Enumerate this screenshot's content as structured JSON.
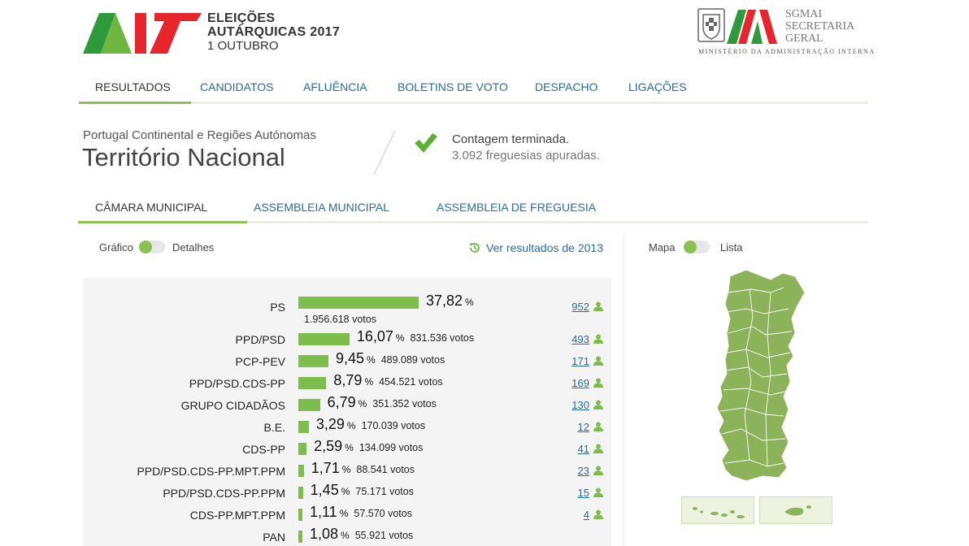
{
  "header": {
    "logo_line1": "ELEIÇÕES",
    "logo_line2": "AUTÁRQUICAS 2017",
    "logo_line3": "1 OUTUBRO",
    "sgmai_line1": "SGMAI",
    "sgmai_line2": "SECRETARIA",
    "sgmai_line3": "GERAL",
    "ministry": "MINISTÉRIO DA ADMINISTRAÇÃO INTERNA"
  },
  "main_nav": [
    {
      "label": "RESULTADOS",
      "active": true
    },
    {
      "label": "CANDIDATOS",
      "active": false
    },
    {
      "label": "AFLUÊNCIA",
      "active": false
    },
    {
      "label": "BOLETINS DE VOTO",
      "active": false
    },
    {
      "label": "DESPACHO",
      "active": false
    },
    {
      "label": "LIGAÇÕES",
      "active": false
    }
  ],
  "region": {
    "subtitle": "Portugal Continental e Regiões Autónomas",
    "title": "Território Nacional"
  },
  "status": {
    "main": "Contagem terminada.",
    "sub": "3.092 freguesias apuradas."
  },
  "sub_tabs": [
    {
      "label": "CÂMARA MUNICIPAL",
      "active": true
    },
    {
      "label": "ASSEMBLEIA MUNICIPAL",
      "active": false
    },
    {
      "label": "ASSEMBLEIA DE FREGUESIA",
      "active": false
    }
  ],
  "view_toggle": {
    "left": "Gráfico",
    "right": "Detalhes"
  },
  "map_toggle": {
    "left": "Mapa",
    "right": "Lista"
  },
  "history_link": "Ver resultados de 2013",
  "pct_sign": "%",
  "results": [
    {
      "party": "PS",
      "pct": "37,82",
      "pct_value": 37.82,
      "votes": "1.956.618 votos",
      "seats": "952"
    },
    {
      "party": "PPD/PSD",
      "pct": "16,07",
      "pct_value": 16.07,
      "votes": "831.536 votos",
      "seats": "493"
    },
    {
      "party": "PCP-PEV",
      "pct": "9,45",
      "pct_value": 9.45,
      "votes": "489.089 votos",
      "seats": "171"
    },
    {
      "party": "PPD/PSD.CDS-PP",
      "pct": "8,79",
      "pct_value": 8.79,
      "votes": "454.521 votos",
      "seats": "169"
    },
    {
      "party": "GRUPO CIDADÃOS",
      "pct": "6,79",
      "pct_value": 6.79,
      "votes": "351.352 votos",
      "seats": "130"
    },
    {
      "party": "B.E.",
      "pct": "3,29",
      "pct_value": 3.29,
      "votes": "170.039 votos",
      "seats": "12"
    },
    {
      "party": "CDS-PP",
      "pct": "2,59",
      "pct_value": 2.59,
      "votes": "134.099 votos",
      "seats": "41"
    },
    {
      "party": "PPD/PSD.CDS-PP.MPT.PPM",
      "pct": "1,71",
      "pct_value": 1.71,
      "votes": "88.541 votos",
      "seats": "23"
    },
    {
      "party": "PPD/PSD.CDS-PP.PPM",
      "pct": "1,45",
      "pct_value": 1.45,
      "votes": "75.171 votos",
      "seats": "15"
    },
    {
      "party": "CDS-PP.MPT.PPM",
      "pct": "1,11",
      "pct_value": 1.11,
      "votes": "57.570 votos",
      "seats": "4"
    },
    {
      "party": "PAN",
      "pct": "1,08",
      "pct_value": 1.08,
      "votes": "55.921 votos",
      "seats": ""
    }
  ],
  "colors": {
    "accent": "#8cc152",
    "bar": "#7cbd4b",
    "link": "#2a6b9d",
    "map": "#8cb35a"
  }
}
